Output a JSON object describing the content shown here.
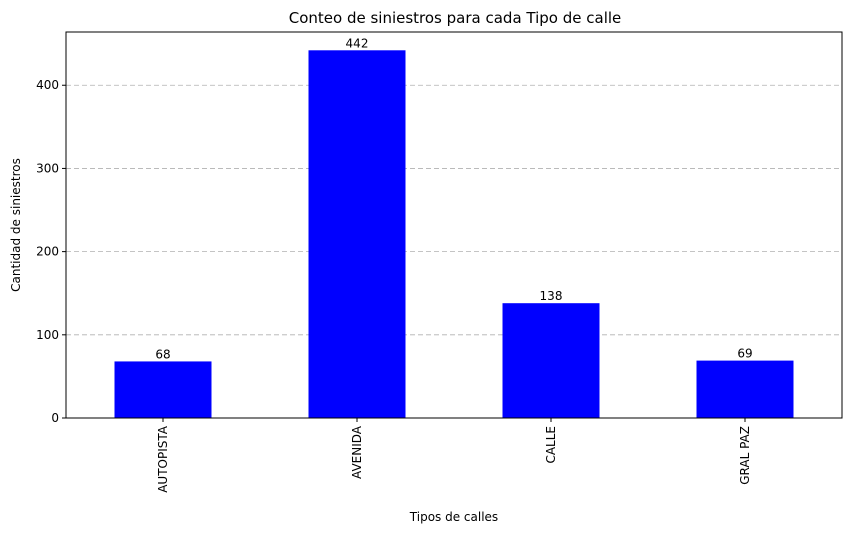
{
  "chart_data": {
    "type": "bar",
    "title": "Conteo de siniestros para cada Tipo de calle",
    "xlabel": "Tipos de calles",
    "ylabel": "Cantidad de siniestros",
    "categories": [
      "AUTOPISTA",
      "AVENIDA",
      "CALLE",
      "GRAL PAZ"
    ],
    "values": [
      68,
      442,
      138,
      69
    ],
    "data_labels": [
      "68",
      "442",
      "138",
      "69"
    ],
    "ylim": [
      0,
      464
    ],
    "yticks": [
      0,
      100,
      200,
      300,
      400
    ],
    "bar_color": "#0000ff",
    "grid": "y-dashed"
  }
}
